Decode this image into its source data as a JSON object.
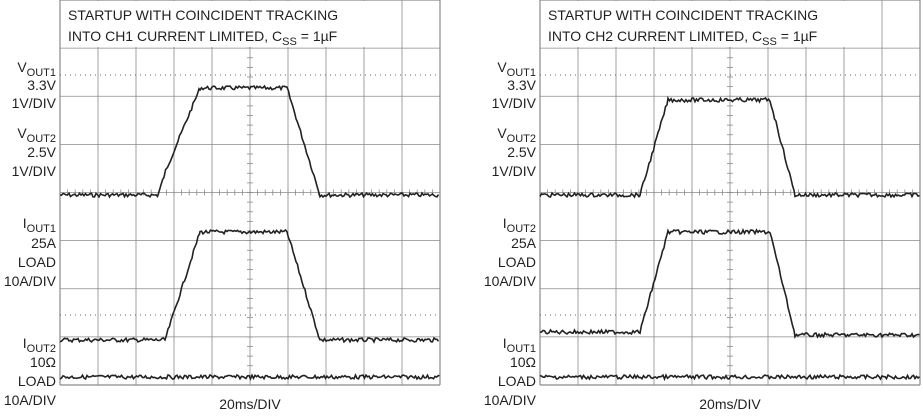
{
  "panels": [
    {
      "title": [
        "STARTUP WITH COINCIDENT TRACKING",
        {
          "text": "INTO CH1 CURRENT LIMITED, C",
          "sub": "SS",
          "rest": " = 1µF"
        }
      ],
      "labels": [
        {
          "main": "V",
          "sub": "OUT1"
        },
        "3.3V",
        "1V/DIV",
        {
          "main": "V",
          "sub": "OUT2"
        },
        "2.5V",
        "1V/DIV",
        {
          "main": "I",
          "sub": "OUT1"
        },
        "25A",
        "LOAD",
        "10A/DIV",
        {
          "main": "I",
          "sub": "OUT2"
        },
        "10Ω",
        "LOAD",
        "10A/DIV"
      ],
      "time_scale": "20ms/DIV"
    },
    {
      "title": [
        "STARTUP WITH COINCIDENT TRACKING",
        {
          "text": "INTO CH2 CURRENT LIMITED, C",
          "sub": "SS",
          "rest": " = 1µF"
        }
      ],
      "labels": [
        {
          "main": "V",
          "sub": "OUT1"
        },
        "3.3V",
        "1V/DIV",
        {
          "main": "V",
          "sub": "OUT2"
        },
        "2.5V",
        "1V/DIV",
        {
          "main": "I",
          "sub": "OUT2"
        },
        "25A",
        "LOAD",
        "10A/DIV",
        {
          "main": "I",
          "sub": "OUT1"
        },
        "10Ω",
        "LOAD",
        "10A/DIV"
      ],
      "time_scale": "20ms/DIV"
    }
  ]
}
